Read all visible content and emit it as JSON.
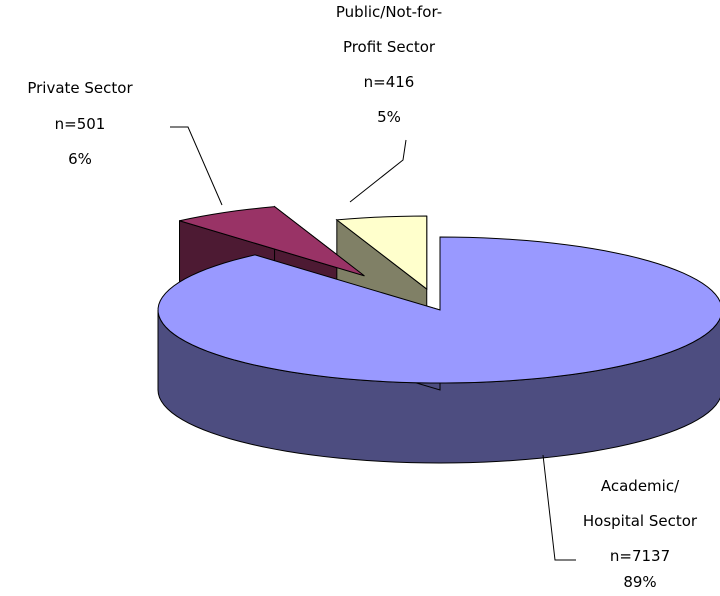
{
  "chart_data": {
    "type": "pie",
    "three_d": true,
    "exploded": true,
    "legend": "none",
    "slices": [
      {
        "name_lines": [
          "Academic/",
          "Hospital Sector"
        ],
        "count_label": "n=7137",
        "percent_label": "89%",
        "value": 7137,
        "percent": 89,
        "top_color": "#9999ff",
        "side_color": "#4d4d80"
      },
      {
        "name_lines": [
          "Private Sector"
        ],
        "count_label": "n=501",
        "percent_label": "6%",
        "value": 501,
        "percent": 6,
        "top_color": "#993366",
        "side_color": "#4d1a33"
      },
      {
        "name_lines": [
          "Public/Not-for-",
          "Profit Sector"
        ],
        "count_label": "n=416",
        "percent_label": "5%",
        "value": 416,
        "percent": 5,
        "top_color": "#ffffcc",
        "side_color": "#808066"
      }
    ]
  }
}
